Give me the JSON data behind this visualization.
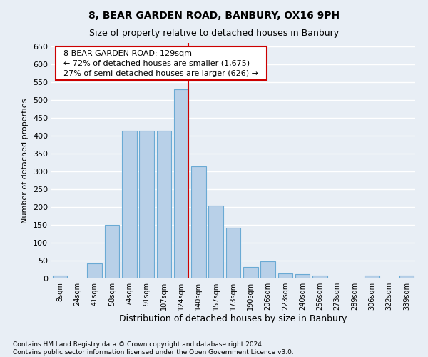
{
  "title": "8, BEAR GARDEN ROAD, BANBURY, OX16 9PH",
  "subtitle": "Size of property relative to detached houses in Banbury",
  "xlabel": "Distribution of detached houses by size in Banbury",
  "ylabel": "Number of detached properties",
  "footer_line1": "Contains HM Land Registry data © Crown copyright and database right 2024.",
  "footer_line2": "Contains public sector information licensed under the Open Government Licence v3.0.",
  "annotation_line1": "8 BEAR GARDEN ROAD: 129sqm",
  "annotation_line2": "← 72% of detached houses are smaller (1,675)",
  "annotation_line3": "27% of semi-detached houses are larger (626) →",
  "categories": [
    "8sqm",
    "24sqm",
    "41sqm",
    "58sqm",
    "74sqm",
    "91sqm",
    "107sqm",
    "124sqm",
    "140sqm",
    "157sqm",
    "173sqm",
    "190sqm",
    "206sqm",
    "223sqm",
    "240sqm",
    "256sqm",
    "273sqm",
    "289sqm",
    "306sqm",
    "322sqm",
    "339sqm"
  ],
  "values": [
    8,
    0,
    42,
    150,
    415,
    415,
    415,
    530,
    315,
    205,
    143,
    33,
    48,
    15,
    13,
    8,
    0,
    0,
    8,
    0,
    8
  ],
  "bar_color": "#b8d0e8",
  "bar_edge_color": "#6aaad4",
  "vline_index": 7,
  "vline_color": "#cc0000",
  "bg_color": "#e8eef5",
  "grid_color": "#ffffff",
  "ylim": [
    0,
    660
  ],
  "yticks": [
    0,
    50,
    100,
    150,
    200,
    250,
    300,
    350,
    400,
    450,
    500,
    550,
    600,
    650
  ],
  "annotation_box_facecolor": "#ffffff",
  "annotation_box_edgecolor": "#cc0000",
  "title_fontsize": 10,
  "subtitle_fontsize": 9,
  "ylabel_fontsize": 8,
  "xlabel_fontsize": 9,
  "ytick_fontsize": 8,
  "xtick_fontsize": 7,
  "annotation_fontsize": 8,
  "footer_fontsize": 6.5
}
